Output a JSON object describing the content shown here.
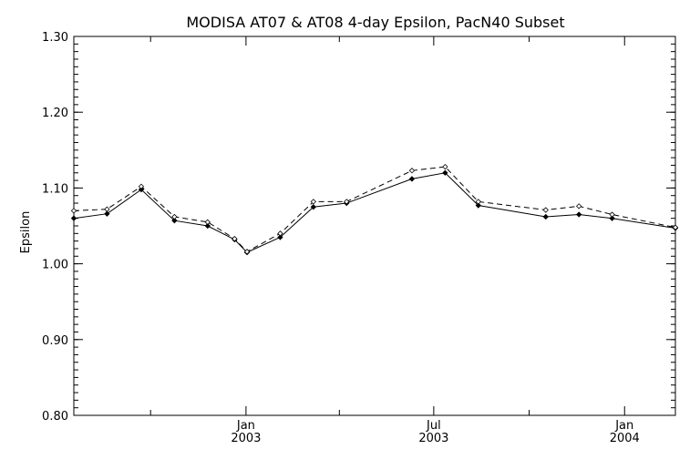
{
  "chart_data": {
    "type": "line",
    "title": "MODISA AT07 & AT08 4-day Epsilon, PacN40 Subset",
    "xlabel": "",
    "ylabel": "Epsilon",
    "ylim": [
      0.8,
      1.3
    ],
    "xlim": [
      "2002-07-19",
      "2004-02-19"
    ],
    "yticks": [
      "0.80",
      "0.90",
      "1.00",
      "1.10",
      "1.20",
      "1.30"
    ],
    "xticks_major": [
      {
        "date": "2003-01-01",
        "label_top": "Jan",
        "label_bottom": "2003"
      },
      {
        "date": "2003-07-01",
        "label_top": "Jul",
        "label_bottom": "2003"
      },
      {
        "date": "2004-01-01",
        "label_top": "Jan",
        "label_bottom": "2004"
      }
    ],
    "xticks_minor": [
      "2002-10-01",
      "2003-04-01",
      "2003-10-01"
    ],
    "grid": false,
    "series": [
      {
        "style": "solid",
        "x": [
          "2002-07-19",
          "2002-08-20",
          "2002-09-22",
          "2002-10-24",
          "2002-11-25",
          "2002-12-21",
          "2003-01-02",
          "2003-02-03",
          "2003-03-07",
          "2003-04-08",
          "2003-06-10",
          "2003-07-12",
          "2003-08-13",
          "2003-10-17",
          "2003-11-18",
          "2003-12-20",
          "2004-02-19"
        ],
        "values": [
          1.06,
          1.066,
          1.098,
          1.057,
          1.05,
          1.032,
          1.015,
          1.035,
          1.075,
          1.08,
          1.112,
          1.12,
          1.077,
          1.062,
          1.065,
          1.06,
          1.047
        ]
      },
      {
        "style": "dashed",
        "x": [
          "2002-07-19",
          "2002-08-20",
          "2002-09-22",
          "2002-10-24",
          "2002-11-25",
          "2002-12-21",
          "2003-01-02",
          "2003-02-03",
          "2003-03-07",
          "2003-04-08",
          "2003-06-10",
          "2003-07-12",
          "2003-08-13",
          "2003-10-17",
          "2003-11-18",
          "2003-12-20",
          "2004-02-19"
        ],
        "values": [
          1.07,
          1.072,
          1.102,
          1.062,
          1.055,
          1.033,
          1.016,
          1.04,
          1.082,
          1.082,
          1.123,
          1.128,
          1.082,
          1.071,
          1.076,
          1.065,
          1.048
        ]
      }
    ]
  }
}
